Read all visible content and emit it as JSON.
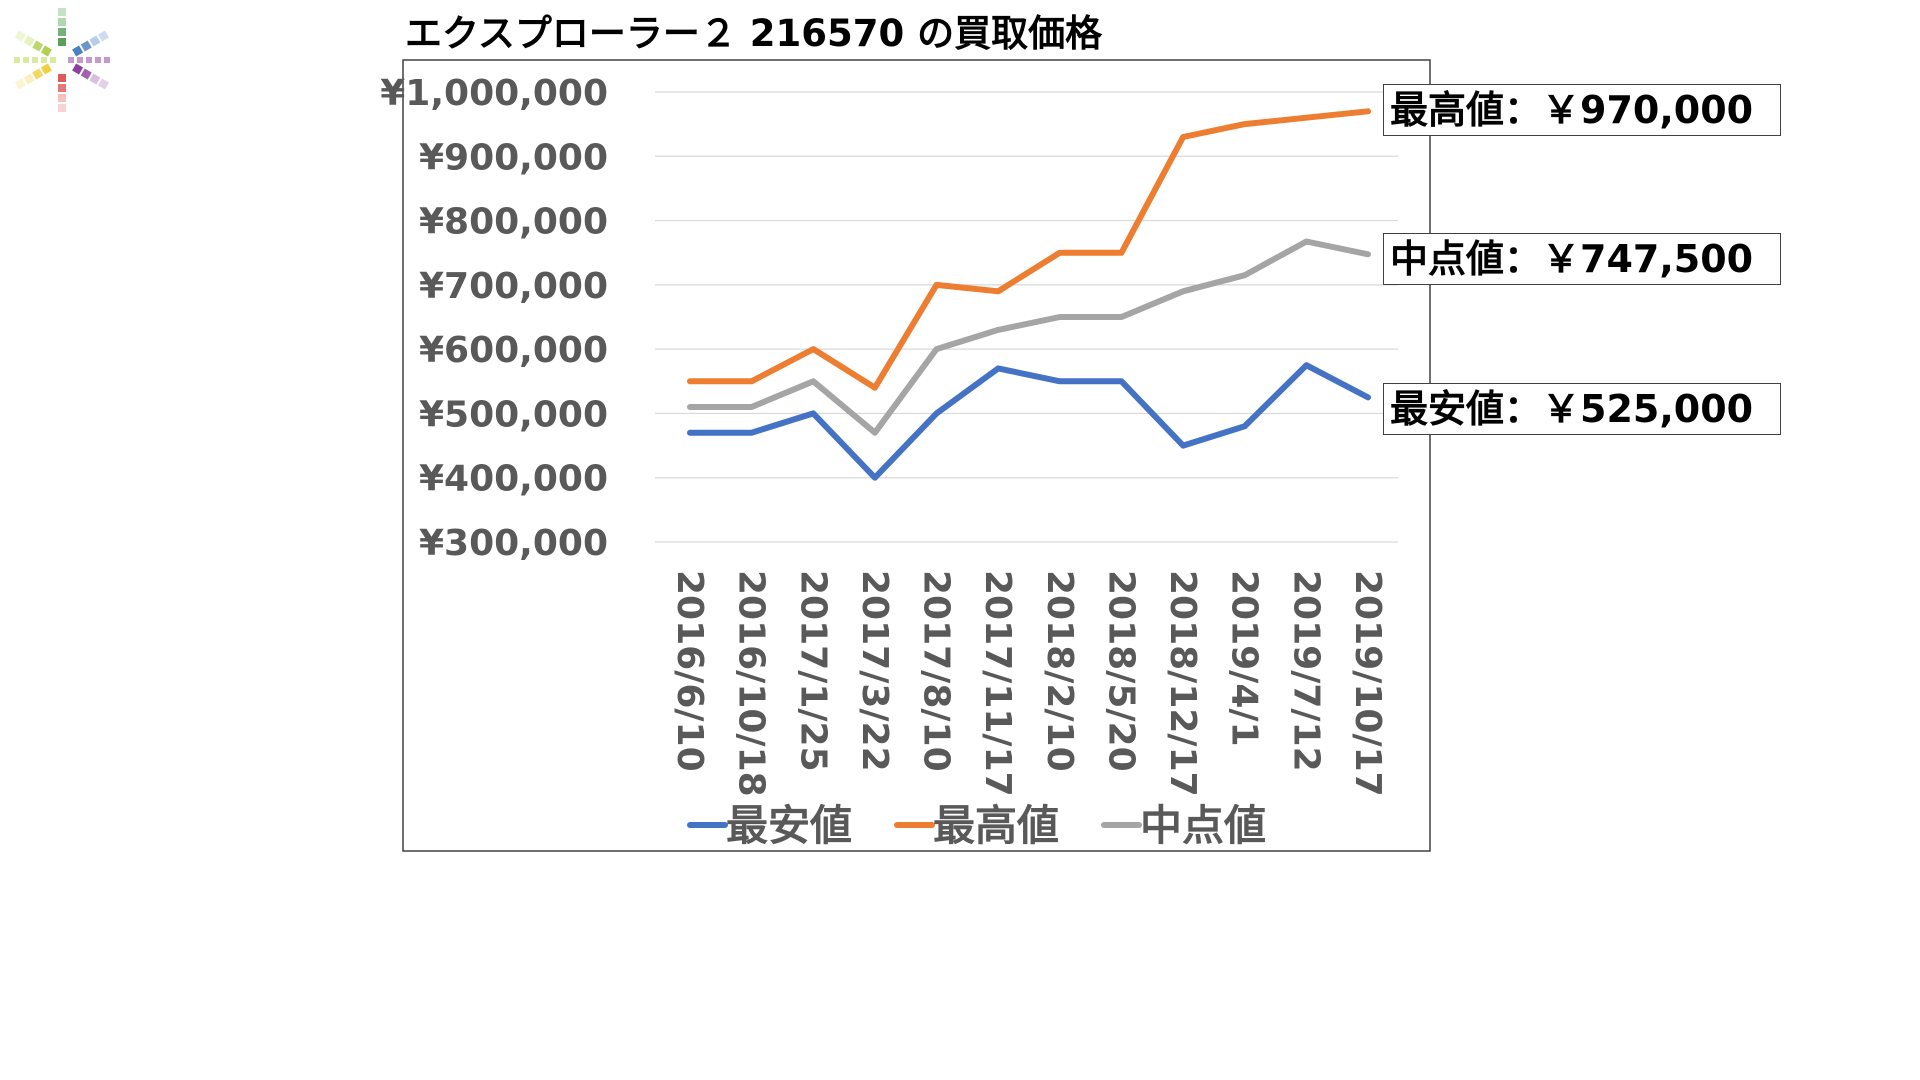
{
  "title": "エクスプローラー２ 216570 の買取価格",
  "callouts": {
    "max": "最高値：￥970,000",
    "mid": "中点値：￥747,500",
    "min": "最安値：￥525,000"
  },
  "logo": {
    "icon": "colorful-star-burst-logo",
    "colors": [
      "#5aa05a",
      "#7fc37f",
      "#4a7fc1",
      "#8fb3e0",
      "#8e3fa0",
      "#c39ad0",
      "#e05a5a",
      "#f0a0a0",
      "#f0d040",
      "#f7e69a",
      "#b0d050",
      "#d8ea9c"
    ]
  },
  "chart_data": {
    "type": "line",
    "categories": [
      "2016/6/10",
      "2016/10/18",
      "2017/1/25",
      "2017/3/22",
      "2017/8/10",
      "2017/11/17",
      "2018/2/10",
      "2018/5/20",
      "2018/12/17",
      "2019/4/1",
      "2019/7/12",
      "2019/10/17"
    ],
    "y_ticks": [
      "¥1,000,000",
      "¥900,000",
      "¥800,000",
      "¥700,000",
      "¥600,000",
      "¥500,000",
      "¥400,000",
      "¥300,000"
    ],
    "ylim": [
      300000,
      1000000
    ],
    "grid": true,
    "legend_position": "bottom",
    "series": [
      {
        "name": "最安値",
        "color": "#4472c4",
        "values": [
          470000,
          470000,
          500000,
          400000,
          500000,
          570000,
          550000,
          550000,
          450000,
          480000,
          575000,
          525000
        ]
      },
      {
        "name": "最高値",
        "color": "#ed7d31",
        "values": [
          550000,
          550000,
          600000,
          540000,
          700000,
          690000,
          750000,
          750000,
          930000,
          950000,
          960000,
          970000
        ]
      },
      {
        "name": "中点値",
        "color": "#a5a5a5",
        "values": [
          510000,
          510000,
          550000,
          470000,
          600000,
          630000,
          650000,
          650000,
          690000,
          715000,
          767500,
          747500
        ]
      }
    ]
  }
}
